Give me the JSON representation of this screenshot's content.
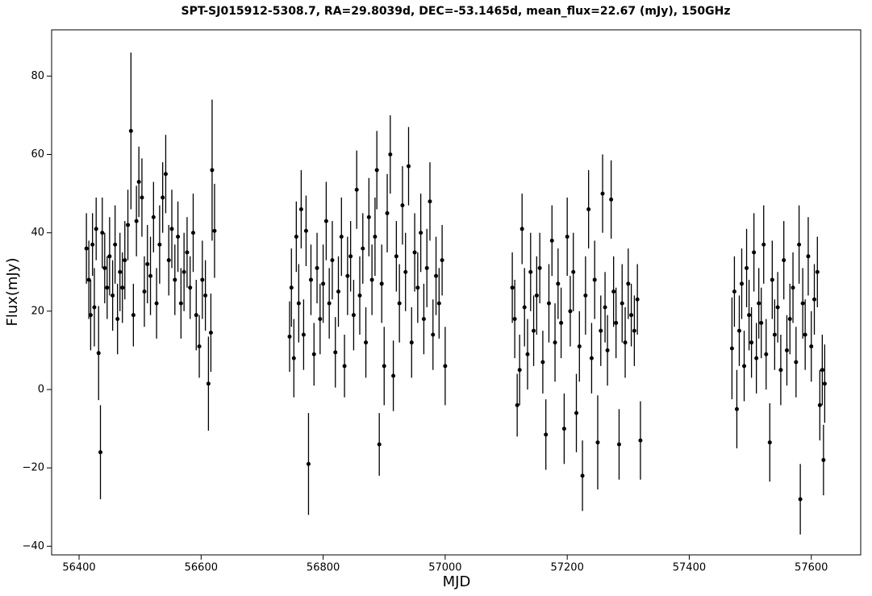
{
  "chart_data": {
    "type": "scatter",
    "title": "SPT-SJ015912-5308.7, RA=29.8039d, DEC=-53.1465d, mean_flux=22.67 (mJy), 150GHz",
    "x_label": "MJD",
    "y_label": "Flux(mJy)",
    "color": "#000000",
    "xlim": [
      56355,
      57681
    ],
    "ylim": [
      -42.2,
      91.8
    ],
    "xticks": [
      56400,
      56600,
      56800,
      57000,
      57200,
      57400,
      57600
    ],
    "yticks": [
      {
        "value": -40,
        "label": "−40"
      },
      {
        "value": -20,
        "label": "−20"
      },
      0,
      20,
      40,
      60,
      80
    ],
    "x": [
      56412,
      56416,
      56419,
      56422,
      56425,
      56428,
      56432,
      56435,
      56438,
      56442,
      56446,
      56450,
      56455,
      56459,
      56463,
      56467,
      56471,
      56475,
      56480,
      56485,
      56489,
      56494,
      56498,
      56503,
      56507,
      56512,
      56517,
      56522,
      56527,
      56532,
      56537,
      56542,
      56547,
      56552,
      56557,
      56562,
      56567,
      56572,
      56577,
      56582,
      56587,
      56592,
      56597,
      56602,
      56607,
      56612,
      56616,
      56618,
      56622,
      56745,
      56748,
      56752,
      56756,
      56760,
      56764,
      56768,
      56772,
      56776,
      56780,
      56785,
      56790,
      56795,
      56800,
      56805,
      56810,
      56815,
      56820,
      56825,
      56830,
      56835,
      56840,
      56845,
      56850,
      56855,
      56860,
      56865,
      56870,
      56875,
      56880,
      56885,
      56888,
      56892,
      56896,
      56900,
      56905,
      56910,
      56915,
      56920,
      56925,
      56930,
      56935,
      56940,
      56945,
      56950,
      56955,
      56960,
      56965,
      56970,
      56975,
      56980,
      56985,
      56990,
      56995,
      57000,
      57110,
      57114,
      57118,
      57122,
      57126,
      57130,
      57135,
      57140,
      57145,
      57150,
      57155,
      57160,
      57165,
      57170,
      57175,
      57180,
      57185,
      57190,
      57195,
      57200,
      57205,
      57210,
      57215,
      57220,
      57225,
      57230,
      57235,
      57240,
      57245,
      57250,
      57255,
      57258,
      57262,
      57266,
      57272,
      57276,
      57280,
      57285,
      57290,
      57295,
      57300,
      57305,
      57310,
      57315,
      57320,
      57470,
      57474,
      57478,
      57482,
      57486,
      57490,
      57494,
      57498,
      57502,
      57506,
      57510,
      57514,
      57518,
      57522,
      57526,
      57532,
      57536,
      57540,
      57545,
      57550,
      57555,
      57560,
      57565,
      57570,
      57575,
      57580,
      57582,
      57586,
      57590,
      57595,
      57600,
      57605,
      57610,
      57614,
      57618,
      57620,
      57622
    ],
    "values": [
      36,
      28,
      19,
      37,
      21,
      41,
      9.3,
      -16,
      40,
      31,
      26,
      34,
      24,
      37,
      18,
      30,
      26,
      33,
      42,
      66,
      19,
      43,
      53,
      49,
      25,
      32,
      29,
      44,
      22,
      37,
      49,
      55,
      33,
      41,
      28,
      39,
      22,
      30,
      35,
      26,
      40,
      19,
      11,
      28,
      24,
      1.5,
      14.5,
      56,
      40.5,
      13.5,
      26,
      8,
      39,
      22,
      46,
      14,
      40.5,
      -19,
      28,
      9,
      31,
      18,
      27,
      43,
      22,
      33,
      9.5,
      25,
      39,
      6,
      29,
      34,
      19,
      51,
      24,
      36,
      12,
      44,
      28,
      39,
      56,
      -14,
      27,
      6,
      45,
      60,
      3.5,
      34,
      22,
      47,
      30,
      57,
      12,
      35,
      26,
      40,
      18,
      31,
      48,
      14,
      29,
      22,
      33,
      6,
      26,
      18,
      -4,
      5,
      41,
      21,
      9,
      30,
      15,
      24,
      31,
      7,
      -11.5,
      22,
      38,
      12,
      27,
      17,
      -10,
      39,
      20,
      30,
      -6,
      11,
      -22,
      24,
      46,
      8,
      28,
      -13.5,
      15,
      50,
      21,
      10,
      48.5,
      25,
      17,
      -14,
      22,
      12,
      27,
      19,
      15,
      23,
      -13,
      10.5,
      25,
      -5,
      15,
      27,
      6,
      31,
      19,
      12,
      35,
      8,
      22,
      17,
      37,
      9,
      -13.5,
      28,
      14,
      21,
      5,
      33,
      10,
      18,
      26,
      7,
      37,
      -28,
      22,
      14,
      34,
      11,
      23,
      30,
      -4,
      5,
      -18,
      1.5
    ],
    "errors": [
      9,
      10,
      9,
      8,
      10,
      8,
      12,
      12,
      9,
      9,
      8,
      10,
      9,
      10,
      9,
      10,
      9,
      10,
      9,
      20,
      8,
      9,
      9,
      10,
      9,
      10,
      10,
      9,
      9,
      10,
      9,
      10,
      9,
      10,
      9,
      9,
      9,
      10,
      9,
      8,
      10,
      9,
      8,
      10,
      9,
      12,
      10,
      18,
      12,
      9,
      10,
      10,
      9,
      10,
      10,
      9,
      9,
      13,
      9,
      8,
      9,
      9,
      10,
      10,
      9,
      10,
      9,
      9,
      10,
      8,
      10,
      9,
      9,
      10,
      10,
      9,
      9,
      10,
      9,
      10,
      10,
      8,
      10,
      10,
      10,
      10,
      9,
      9,
      10,
      10,
      10,
      10,
      9,
      10,
      9,
      10,
      9,
      10,
      10,
      9,
      10,
      9,
      9,
      10,
      9,
      10,
      8,
      9,
      9,
      10,
      9,
      10,
      9,
      10,
      9,
      8,
      9,
      10,
      9,
      10,
      9,
      9,
      9,
      10,
      9,
      10,
      10,
      9,
      9,
      10,
      10,
      9,
      10,
      12,
      9,
      10,
      9,
      9,
      10,
      9,
      9,
      9,
      10,
      9,
      9,
      8,
      9,
      9,
      10,
      13,
      9,
      10,
      9,
      9,
      9,
      10,
      9,
      9,
      10,
      9,
      9,
      9,
      10,
      9,
      10,
      10,
      9,
      9,
      9,
      10,
      9,
      9,
      9,
      9,
      10,
      9,
      9,
      9,
      10,
      9,
      9,
      9,
      9,
      9,
      9,
      10
    ]
  }
}
